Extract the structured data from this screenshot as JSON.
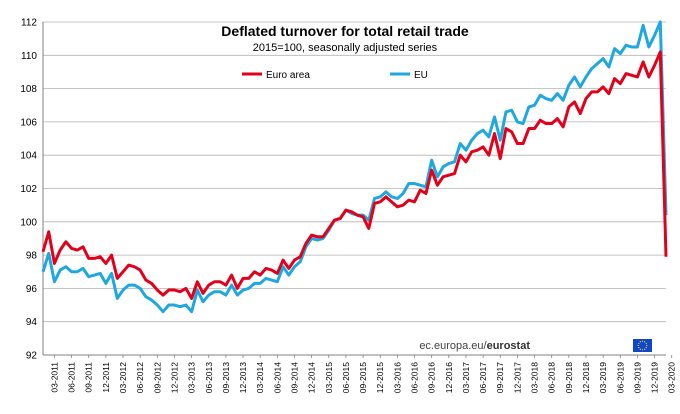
{
  "chart_data": {
    "type": "line",
    "title": "Deflated turnover for total retail trade",
    "subtitle": "2015=100, seasonally adjusted series",
    "xlabel": "",
    "ylabel": "",
    "ylim": [
      92,
      112
    ],
    "yticks": [
      92,
      94,
      96,
      98,
      100,
      102,
      104,
      106,
      108,
      110,
      112
    ],
    "x_tick_labels": [
      "03-2011",
      "06-2011",
      "09-2011",
      "12-2011",
      "03-2012",
      "06-2012",
      "09-2012",
      "12-2012",
      "03-2013",
      "06-2013",
      "09-2013",
      "12-2013",
      "03-2014",
      "06-2014",
      "09-2014",
      "12-2014",
      "03-2015",
      "06-2015",
      "09-2015",
      "12-2015",
      "03-2016",
      "06-2016",
      "09-2016",
      "12-2016",
      "03-2017",
      "06-2017",
      "09-2017",
      "12-2017",
      "03-2018",
      "06-2018",
      "09-2018",
      "12-2018",
      "03-2019",
      "06-2019",
      "09-2019",
      "12-2019",
      "03-2020"
    ],
    "x_start": "2011-01",
    "x_end": "2020-03",
    "grid": true,
    "legend_position": "top",
    "colors": {
      "euro_area": "#e2001a",
      "eu": "#1fa7e0"
    },
    "series": [
      {
        "name": "Euro area",
        "values": [
          98.2,
          99.4,
          97.5,
          98.3,
          98.8,
          98.4,
          98.3,
          98.5,
          97.8,
          97.8,
          97.9,
          97.5,
          98.0,
          96.6,
          97.0,
          97.4,
          97.3,
          97.1,
          96.5,
          96.3,
          95.9,
          95.6,
          95.9,
          95.9,
          95.8,
          96.0,
          95.4,
          96.4,
          95.7,
          96.2,
          96.4,
          96.4,
          96.2,
          96.8,
          96.0,
          96.6,
          96.6,
          97.0,
          96.8,
          97.2,
          97.1,
          96.9,
          97.7,
          97.2,
          97.7,
          97.9,
          98.7,
          99.2,
          99.1,
          99.1,
          99.6,
          100.1,
          100.2,
          100.7,
          100.6,
          100.4,
          100.3,
          99.6,
          101.1,
          101.2,
          101.5,
          101.2,
          100.9,
          101.0,
          101.3,
          101.2,
          101.9,
          101.7,
          103.1,
          102.2,
          102.7,
          102.8,
          102.9,
          104.0,
          103.6,
          104.2,
          104.3,
          104.5,
          104.0,
          105.3,
          103.8,
          105.6,
          105.4,
          104.7,
          104.7,
          105.6,
          105.6,
          106.1,
          105.9,
          105.9,
          106.2,
          105.7,
          106.9,
          107.2,
          106.5,
          107.4,
          107.8,
          107.8,
          108.1,
          107.7,
          108.6,
          108.3,
          108.9,
          108.8,
          108.7,
          109.6,
          108.7,
          109.4,
          110.2,
          97.9
        ]
      },
      {
        "name": "EU",
        "values": [
          97.0,
          98.1,
          96.4,
          97.1,
          97.3,
          97.0,
          97.0,
          97.2,
          96.7,
          96.8,
          96.9,
          96.3,
          96.9,
          95.4,
          95.9,
          96.2,
          96.2,
          96.0,
          95.5,
          95.3,
          95.0,
          94.6,
          95.0,
          95.0,
          94.9,
          95.0,
          94.6,
          95.9,
          95.2,
          95.6,
          95.8,
          95.8,
          95.6,
          96.2,
          95.6,
          95.9,
          96.0,
          96.3,
          96.3,
          96.6,
          96.5,
          96.4,
          97.3,
          96.8,
          97.3,
          97.6,
          98.5,
          99.0,
          98.9,
          99.0,
          99.5,
          100.1,
          100.2,
          100.7,
          100.5,
          100.4,
          100.4,
          100.1,
          101.4,
          101.5,
          101.8,
          101.5,
          101.4,
          101.7,
          102.3,
          102.3,
          102.2,
          102.1,
          103.7,
          102.7,
          103.3,
          103.5,
          103.6,
          104.7,
          104.3,
          104.9,
          105.3,
          105.5,
          105.1,
          106.3,
          104.9,
          106.6,
          106.7,
          106.0,
          105.9,
          106.9,
          107.0,
          107.6,
          107.4,
          107.3,
          107.7,
          107.3,
          108.2,
          108.7,
          108.1,
          108.7,
          109.2,
          109.5,
          109.8,
          109.3,
          110.4,
          110.1,
          110.6,
          110.5,
          110.5,
          111.8,
          110.5,
          111.2,
          112.0,
          100.4
        ]
      }
    ]
  },
  "source": {
    "prefix": "ec.europa.eu/",
    "brand": "eurostat"
  }
}
